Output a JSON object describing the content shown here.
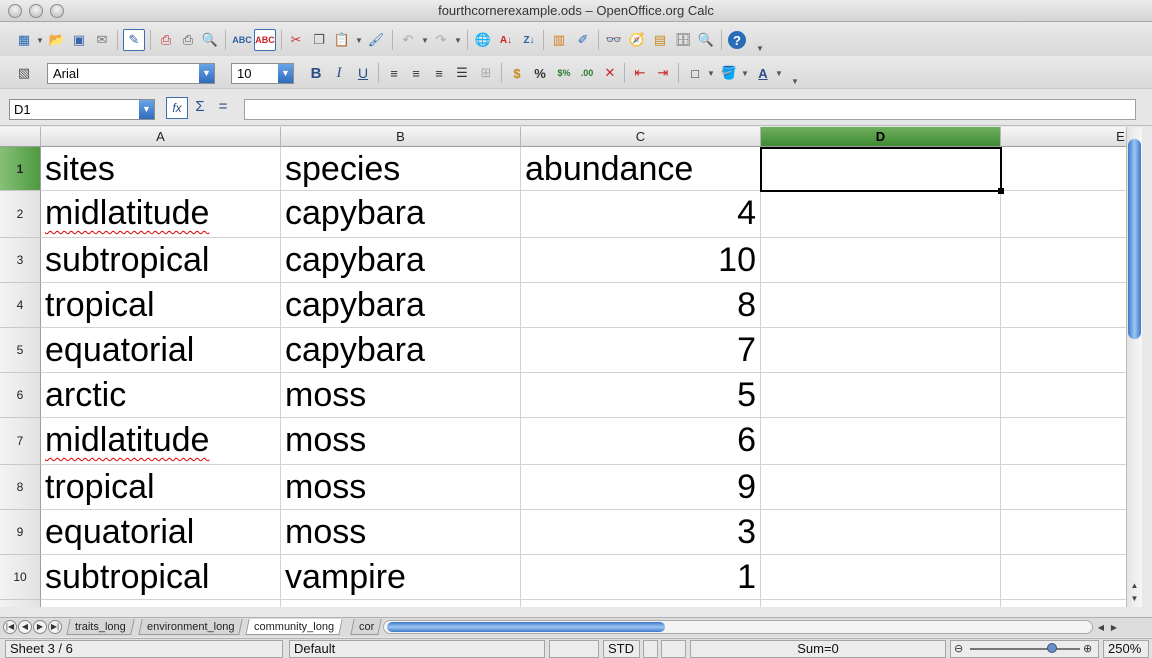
{
  "window": {
    "title": "fourthcornerexample.ods – OpenOffice.org Calc"
  },
  "formatting": {
    "font_name": "Arial",
    "font_size": "10"
  },
  "formula_bar": {
    "cell_ref": "D1",
    "fx_label": "fx",
    "sum_label": "Σ",
    "equals_label": "=",
    "content": ""
  },
  "columns": [
    "A",
    "B",
    "C",
    "D",
    "E"
  ],
  "selected_cell": "D1",
  "rows": [
    {
      "num": "1",
      "a": "sites",
      "b": "species",
      "c": "abundance"
    },
    {
      "num": "2",
      "a": "midlatitude",
      "b": "capybara",
      "c": "4"
    },
    {
      "num": "3",
      "a": "subtropical",
      "b": "capybara",
      "c": "10"
    },
    {
      "num": "4",
      "a": "tropical",
      "b": "capybara",
      "c": "8"
    },
    {
      "num": "5",
      "a": "equatorial",
      "b": "capybara",
      "c": "7"
    },
    {
      "num": "6",
      "a": "arctic",
      "b": "moss",
      "c": "5"
    },
    {
      "num": "7",
      "a": "midlatitude",
      "b": "moss",
      "c": "6"
    },
    {
      "num": "8",
      "a": "tropical",
      "b": "moss",
      "c": "9"
    },
    {
      "num": "9",
      "a": "equatorial",
      "b": "moss",
      "c": "3"
    },
    {
      "num": "10",
      "a": "subtropical",
      "b": "vampire",
      "c": "1"
    }
  ],
  "sheet_tabs": [
    {
      "label": "traits_long",
      "active": false
    },
    {
      "label": "environment_long",
      "active": false
    },
    {
      "label": "community_long",
      "active": true
    },
    {
      "label": "cor",
      "active": false
    }
  ],
  "status_bar": {
    "sheet": "Sheet 3 / 6",
    "page_style": "Default",
    "mode": "STD",
    "sum": "Sum=0",
    "zoom": "250%"
  },
  "icons": [
    "new-icon",
    "open-icon",
    "save-icon",
    "email-icon",
    "edit-file-icon",
    "pdf-icon",
    "print-icon",
    "print-preview-icon",
    "spellcheck-icon",
    "autospell-icon",
    "cut-icon",
    "copy-icon",
    "paste-icon",
    "clone-format-icon",
    "undo-icon",
    "redo-icon",
    "hyperlink-icon",
    "sort-ascending-icon",
    "sort-descending-icon",
    "chart-icon",
    "draw-icon",
    "find-icon",
    "navigator-icon",
    "gallery-icon",
    "datasources-icon",
    "zoom-icon",
    "help-icon",
    "bold-icon",
    "italic-icon",
    "underline-icon",
    "align-left-icon",
    "center-icon",
    "align-right-icon",
    "justify-icon",
    "merge-cells-icon",
    "currency-icon",
    "percent-icon",
    "number-format-icon",
    "add-decimal-icon",
    "delete-decimal-icon",
    "decrease-indent-icon",
    "increase-indent-icon",
    "borders-icon",
    "background-color-icon",
    "font-color-icon"
  ]
}
